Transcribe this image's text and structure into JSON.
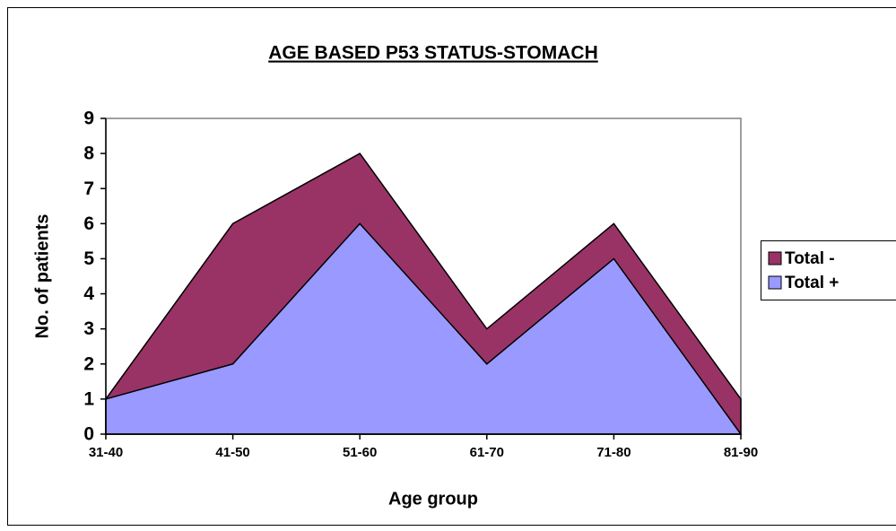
{
  "chart_data": {
    "type": "area",
    "title": "AGE BASED P53 STATUS-STOMACH",
    "x_label": "Age group",
    "y_label": "No. of patients",
    "categories": [
      "31-40",
      "41-50",
      "51-60",
      "61-70",
      "71-80",
      "81-90"
    ],
    "series": [
      {
        "name": "Total -",
        "color": "#993366",
        "values": [
          1,
          6,
          8,
          3,
          6,
          1
        ]
      },
      {
        "name": "Total +",
        "color": "#9999ff",
        "values": [
          1,
          2,
          6,
          2,
          5,
          0
        ]
      }
    ],
    "ylim": [
      0,
      9
    ],
    "yticks": [
      0,
      1,
      2,
      3,
      4,
      5,
      6,
      7,
      8,
      9
    ],
    "grid": false,
    "legend": "right"
  }
}
